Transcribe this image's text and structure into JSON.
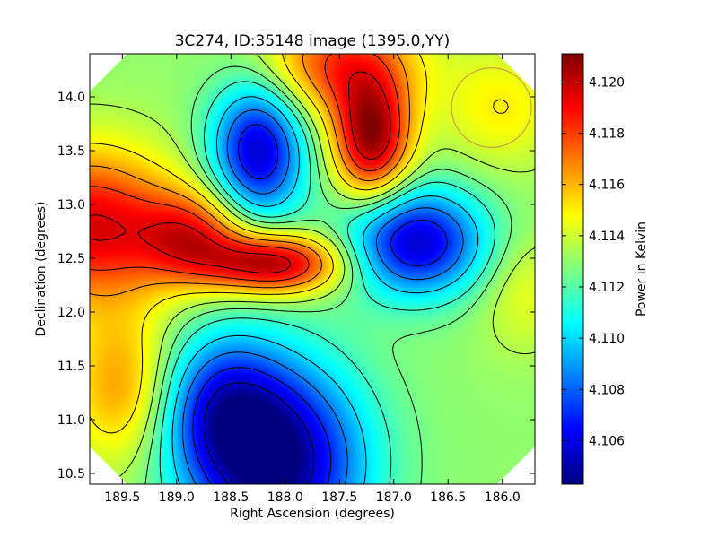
{
  "chart_data": {
    "type": "heatmap",
    "title": "3C274, ID:35148 image (1395.0,YY)",
    "xlabel": "Right Ascension (degrees)",
    "ylabel": "Declination (degrees)",
    "colorbar_label": "Power in Kelvin",
    "xlim": [
      189.8,
      185.7
    ],
    "ylim": [
      10.4,
      14.4
    ],
    "x_ticks": [
      189.5,
      189.0,
      188.5,
      188.0,
      187.5,
      187.0,
      186.5,
      186.0
    ],
    "x_tick_labels": [
      "189.5",
      "189.0",
      "188.5",
      "188.0",
      "187.5",
      "187.0",
      "186.5",
      "186.0"
    ],
    "y_ticks": [
      10.5,
      11.0,
      11.5,
      12.0,
      12.5,
      13.0,
      13.5,
      14.0
    ],
    "y_tick_labels": [
      "10.5",
      "11.0",
      "11.5",
      "12.0",
      "12.5",
      "13.0",
      "13.5",
      "14.0"
    ],
    "colorbar_range": [
      4.1043,
      4.1211
    ],
    "colorbar_ticks": [
      4.106,
      4.108,
      4.11,
      4.112,
      4.114,
      4.116,
      4.118,
      4.12
    ],
    "colorbar_tick_labels": [
      "4.106",
      "4.108",
      "4.110",
      "4.112",
      "4.114",
      "4.116",
      "4.118",
      "4.120"
    ],
    "colormap": [
      "#00007f",
      "#0000ff",
      "#007fff",
      "#00ffff",
      "#7fff7f",
      "#ffff00",
      "#ff7f00",
      "#ff0000",
      "#7f0000"
    ],
    "background_value": 4.113,
    "features": [
      {
        "ra": 189.8,
        "dec": 12.8,
        "value": 4.1195,
        "sigma_ra": 0.55,
        "sigma_dec": 0.5
      },
      {
        "ra": 188.1,
        "dec": 12.45,
        "value": 4.1205,
        "sigma_ra": 0.45,
        "sigma_dec": 0.2
      },
      {
        "ra": 188.85,
        "dec": 12.7,
        "value": 4.118,
        "sigma_ra": 0.35,
        "sigma_dec": 0.3
      },
      {
        "ra": 187.2,
        "dec": 13.6,
        "value": 4.1205,
        "sigma_ra": 0.25,
        "sigma_dec": 0.4
      },
      {
        "ra": 187.5,
        "dec": 14.3,
        "value": 4.118,
        "sigma_ra": 0.5,
        "sigma_dec": 0.35
      },
      {
        "ra": 188.25,
        "dec": 13.5,
        "value": 4.1055,
        "sigma_ra": 0.3,
        "sigma_dec": 0.45
      },
      {
        "ra": 186.8,
        "dec": 12.65,
        "value": 4.1055,
        "sigma_ra": 0.45,
        "sigma_dec": 0.35
      },
      {
        "ra": 188.05,
        "dec": 10.6,
        "value": 4.1045,
        "sigma_ra": 0.55,
        "sigma_dec": 0.65
      },
      {
        "ra": 188.6,
        "dec": 11.1,
        "value": 4.108,
        "sigma_ra": 0.4,
        "sigma_dec": 0.5
      },
      {
        "ra": 189.5,
        "dec": 11.3,
        "value": 4.1165,
        "sigma_ra": 0.35,
        "sigma_dec": 0.5
      },
      {
        "ra": 186.0,
        "dec": 13.9,
        "value": 4.115,
        "sigma_ra": 0.4,
        "sigma_dec": 0.4
      },
      {
        "ra": 185.8,
        "dec": 12.2,
        "value": 4.1145,
        "sigma_ra": 0.3,
        "sigma_dec": 0.4
      }
    ],
    "contour_levels": [
      4.1055,
      4.107,
      4.1085,
      4.11,
      4.1115,
      4.1125,
      4.1135,
      4.115,
      4.1165,
      4.118,
      4.1195
    ],
    "marker_circle": {
      "ra": 186.1,
      "dec": 13.9,
      "radius_deg": 0.37,
      "color": "#c8a040"
    }
  }
}
